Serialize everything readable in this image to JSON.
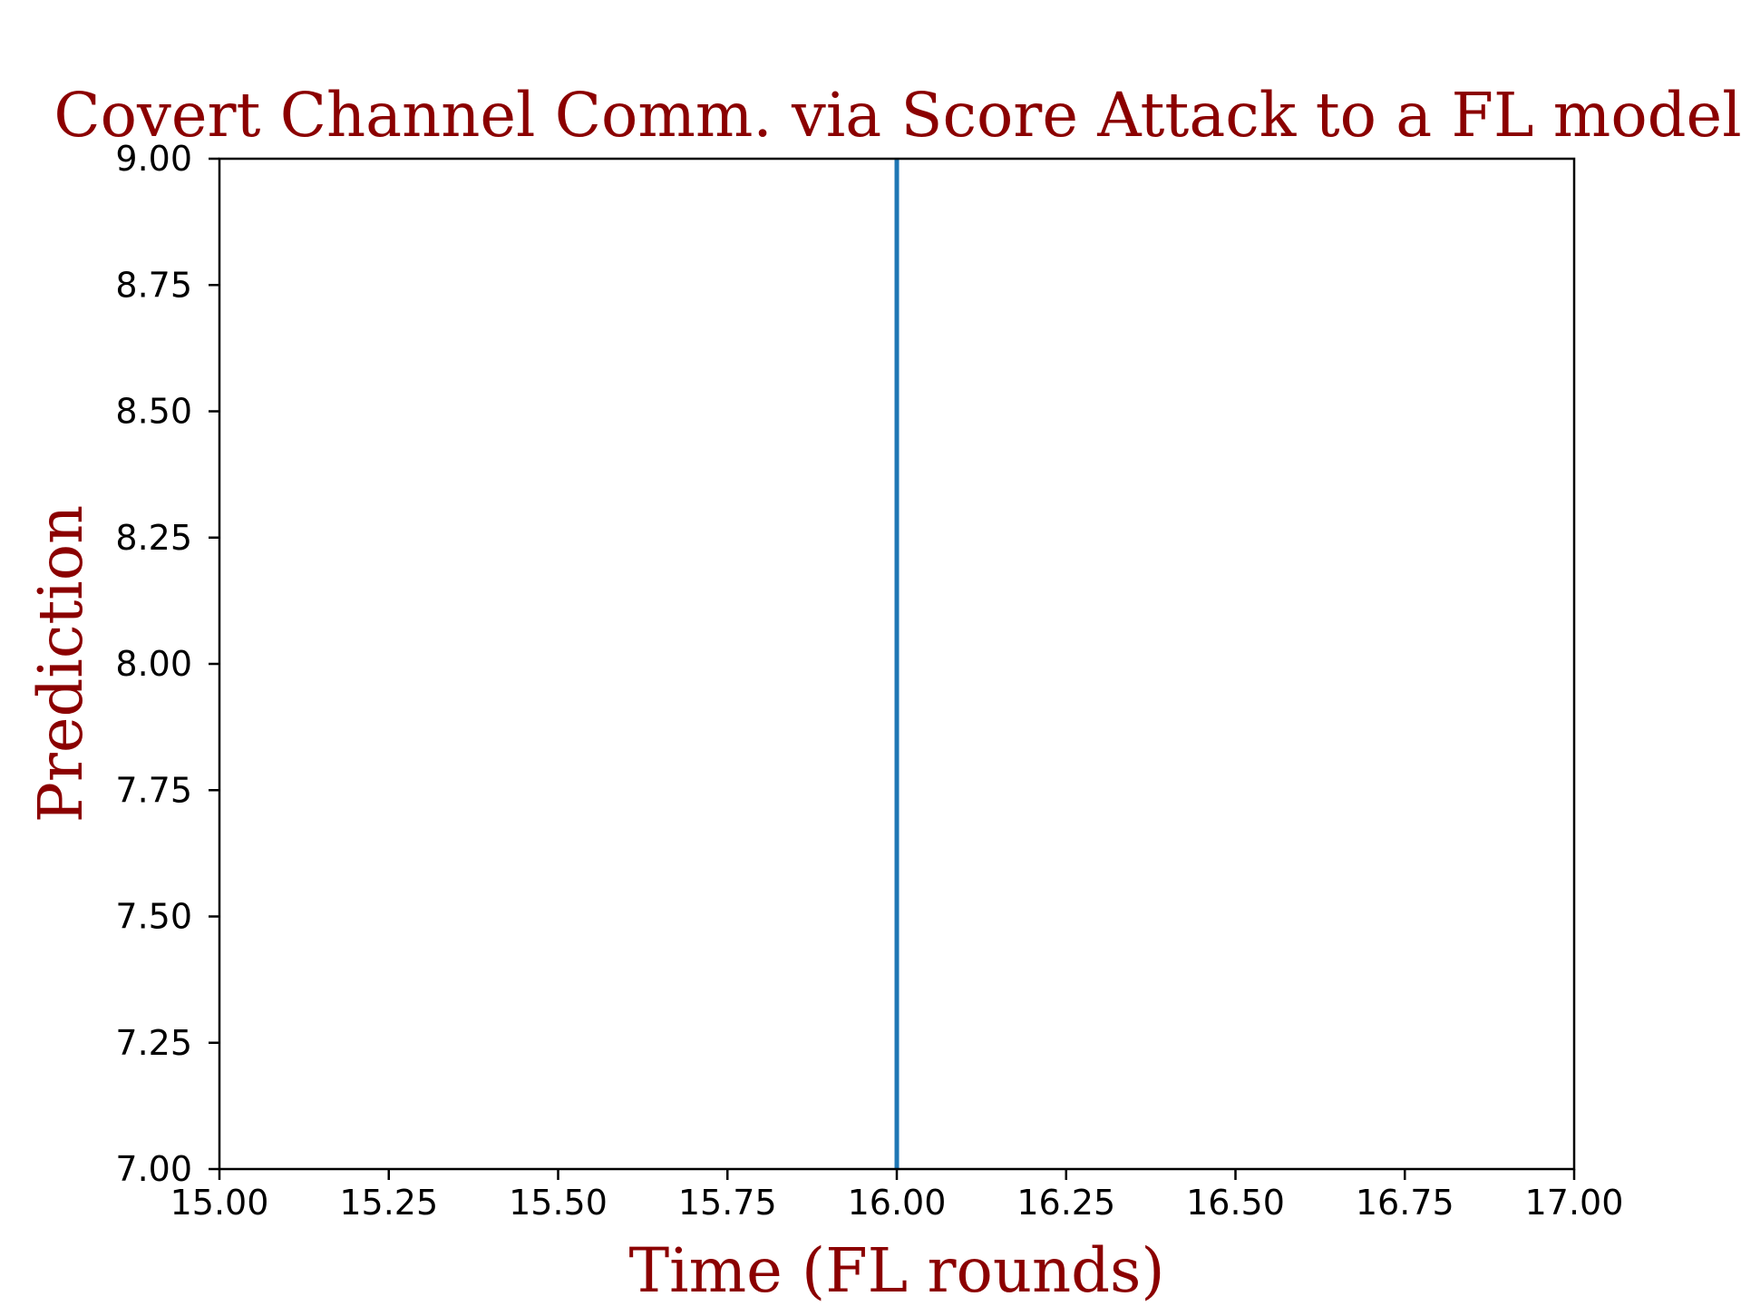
{
  "chart_data": {
    "type": "line",
    "title": "Covert Channel Comm. via Score Attack to a FL model",
    "xlabel": "Time (FL rounds)",
    "ylabel": "Prediction",
    "xlim": [
      15.0,
      17.0
    ],
    "ylim": [
      7.0,
      9.0
    ],
    "xticks": [
      "15.00",
      "15.25",
      "15.50",
      "15.75",
      "16.00",
      "16.25",
      "16.50",
      "16.75",
      "17.00"
    ],
    "yticks": [
      "7.00",
      "7.25",
      "7.50",
      "7.75",
      "8.00",
      "8.25",
      "8.50",
      "8.75",
      "9.00"
    ],
    "grid": false,
    "series": [
      {
        "x": [
          16.0,
          16.0
        ],
        "y": [
          7.0,
          9.0
        ],
        "color": "#1f77b4"
      }
    ],
    "label_color": "#8b0000"
  }
}
